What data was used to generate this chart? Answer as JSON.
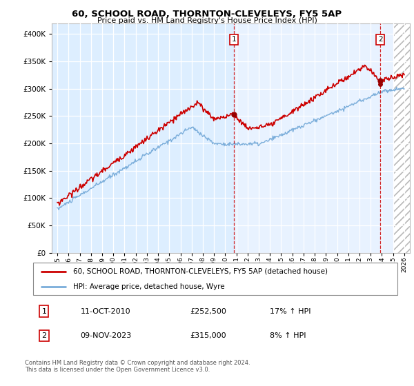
{
  "title": "60, SCHOOL ROAD, THORNTON-CLEVELEYS, FY5 5AP",
  "subtitle": "Price paid vs. HM Land Registry's House Price Index (HPI)",
  "legend_line1": "60, SCHOOL ROAD, THORNTON-CLEVELEYS, FY5 5AP (detached house)",
  "legend_line2": "HPI: Average price, detached house, Wyre",
  "sale1_date": "11-OCT-2010",
  "sale1_price": "£252,500",
  "sale1_hpi": "17% ↑ HPI",
  "sale2_date": "09-NOV-2023",
  "sale2_price": "£315,000",
  "sale2_hpi": "8% ↑ HPI",
  "footer": "Contains HM Land Registry data © Crown copyright and database right 2024.\nThis data is licensed under the Open Government Licence v3.0.",
  "line_color_red": "#cc0000",
  "line_color_blue": "#7aadda",
  "bg_before_sale1": "#ddeeff",
  "bg_after_sale1": "#e8f2ff",
  "yticks": [
    0,
    50000,
    100000,
    150000,
    200000,
    250000,
    300000,
    350000,
    400000
  ],
  "sale1_x": 2010.79,
  "sale1_y": 252500,
  "sale2_x": 2023.86,
  "sale2_y": 315000,
  "hpi_dot2_y": 308000,
  "xmin": 1994.5,
  "xmax": 2026.5,
  "hatch_start": 2025.0
}
